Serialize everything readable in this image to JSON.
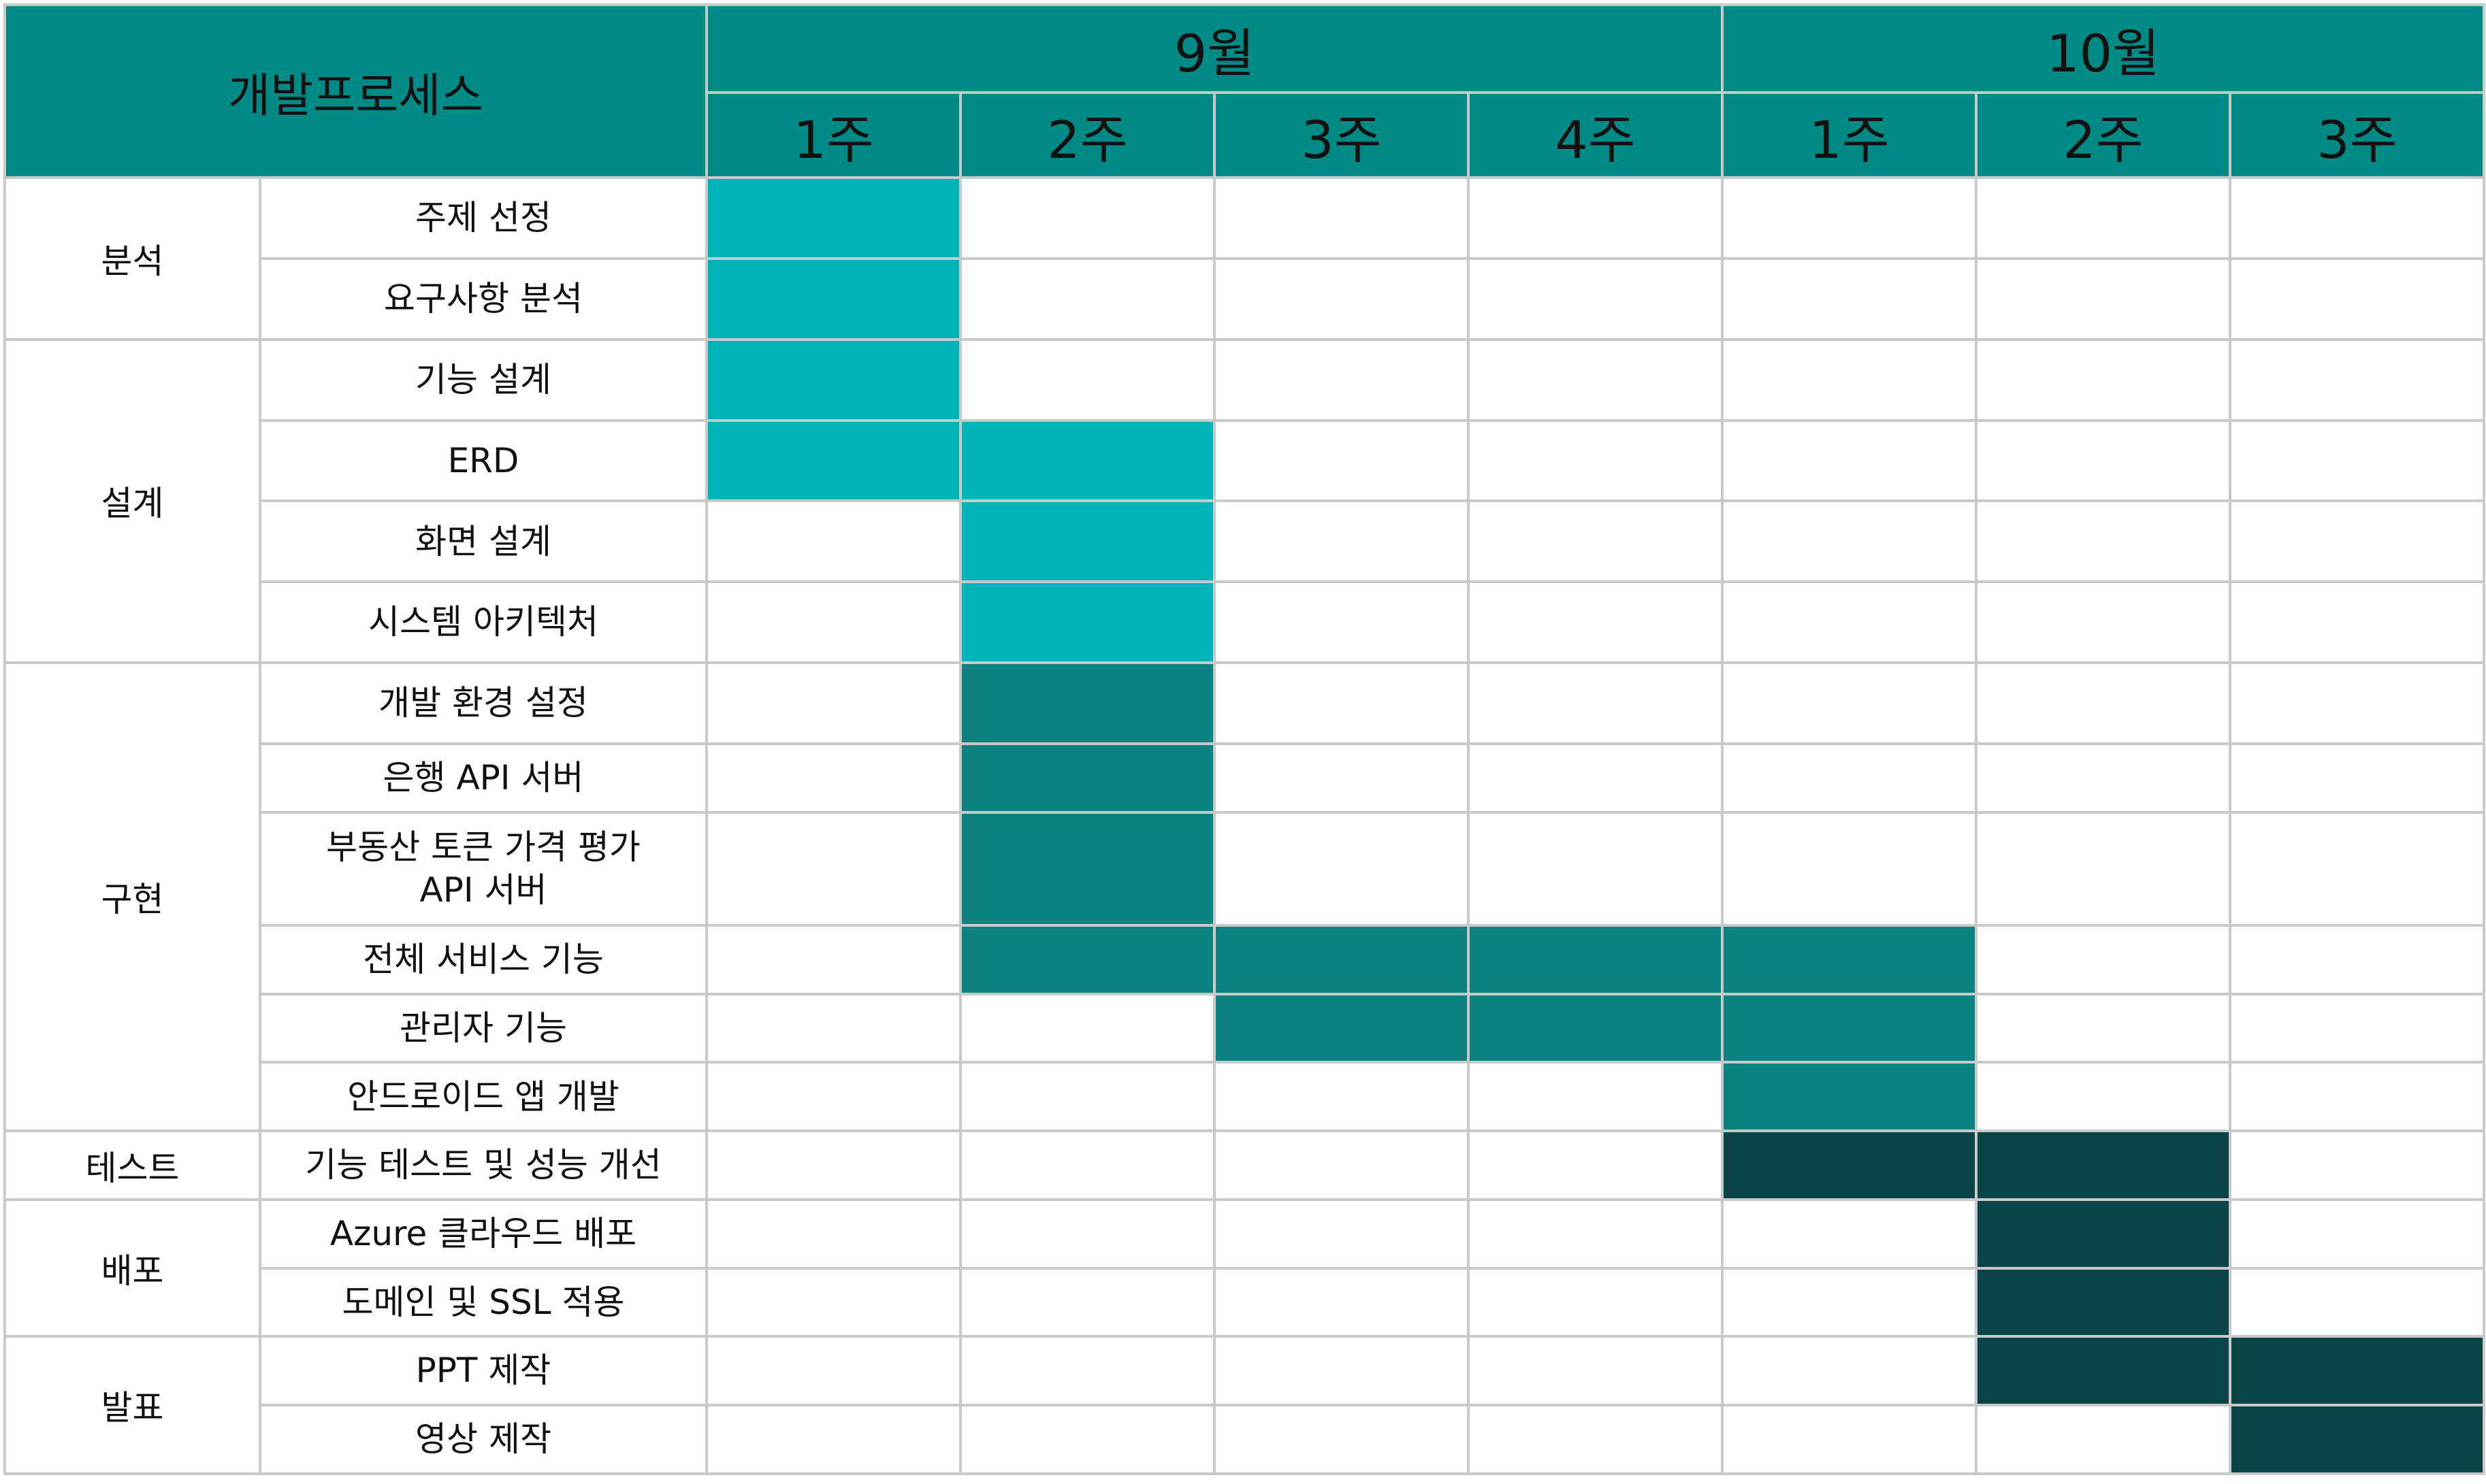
{
  "header": {
    "title": "개발프로세스",
    "months": [
      {
        "label": "9월",
        "weeks": [
          "1주",
          "2주",
          "3주",
          "4주"
        ]
      },
      {
        "label": "10월",
        "weeks": [
          "1주",
          "2주",
          "3주"
        ]
      }
    ]
  },
  "colors": {
    "header": "#008a86",
    "analysis_design": "#00b5b9",
    "implementation": "#0b8280",
    "test_deploy_present": "#0b4446"
  },
  "groups": [
    {
      "label": "분석",
      "tasks": [
        {
          "label": "주제 선정",
          "weeks": [
            1
          ]
        },
        {
          "label": "요구사항 분석",
          "weeks": [
            1
          ]
        }
      ]
    },
    {
      "label": "설계",
      "tasks": [
        {
          "label": "기능 설계",
          "weeks": [
            1
          ]
        },
        {
          "label": "ERD",
          "weeks": [
            1,
            2
          ]
        },
        {
          "label": "화면 설계",
          "weeks": [
            2
          ]
        },
        {
          "label": "시스템 아키텍처",
          "weeks": [
            2
          ]
        }
      ]
    },
    {
      "label": "구현",
      "tasks": [
        {
          "label": "개발 환경 설정",
          "weeks": [
            2
          ]
        },
        {
          "label": "은행 API 서버",
          "weeks": [
            2
          ]
        },
        {
          "label": "부동산 토큰 가격 평가\nAPI 서버",
          "weeks": [
            2
          ]
        },
        {
          "label": "전체 서비스 기능",
          "weeks": [
            2,
            3,
            4,
            5
          ]
        },
        {
          "label": "관리자 기능",
          "weeks": [
            3,
            4,
            5
          ]
        },
        {
          "label": "안드로이드 앱 개발",
          "weeks": [
            5
          ]
        }
      ]
    },
    {
      "label": "테스트",
      "tasks": [
        {
          "label": "기능 테스트 및 성능 개선",
          "weeks": [
            5,
            6
          ]
        }
      ]
    },
    {
      "label": "배포",
      "tasks": [
        {
          "label": "Azure 클라우드 배포",
          "weeks": [
            6
          ]
        },
        {
          "label": "도메인 및 SSL 적용",
          "weeks": [
            6
          ]
        }
      ]
    },
    {
      "label": "발표",
      "tasks": [
        {
          "label": "PPT 제작",
          "weeks": [
            6,
            7
          ]
        },
        {
          "label": "영상 제작",
          "weeks": [
            7
          ]
        }
      ]
    }
  ]
}
